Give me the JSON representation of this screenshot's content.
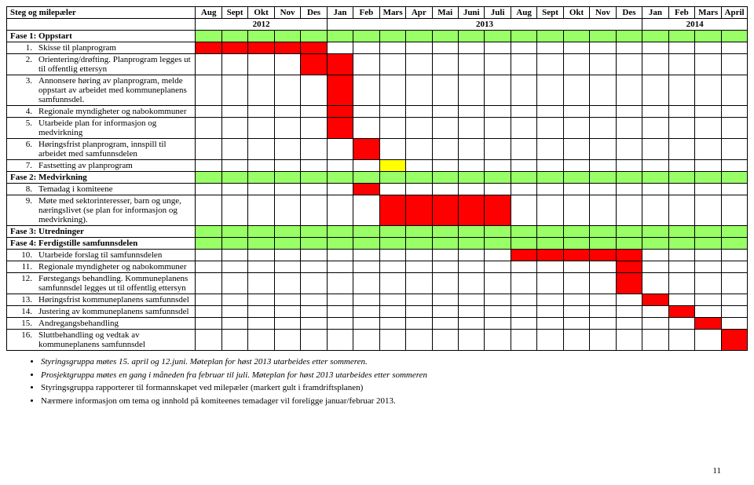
{
  "colors": {
    "red": "#ff0000",
    "green": "#99ff66",
    "yellow": "#ffff00",
    "white": "#ffffff",
    "border": "#000000"
  },
  "header": {
    "taskCol": "Steg og milepæler",
    "months": [
      "Aug",
      "Sept",
      "Okt",
      "Nov",
      "Des",
      "Jan",
      "Feb",
      "Mars",
      "Apr",
      "Mai",
      "Juni",
      "Juli",
      "Aug",
      "Sept",
      "Okt",
      "Nov",
      "Des",
      "Jan",
      "Feb",
      "Mars",
      "April"
    ],
    "yearSpans": [
      {
        "label": "2012",
        "span": 5
      },
      {
        "label": "2013",
        "span": 12
      },
      {
        "label": "2014",
        "span": 4
      }
    ]
  },
  "rows": [
    {
      "num": "",
      "label": "Fase 1: Oppstart",
      "bold": true,
      "fill": [
        "g",
        "g",
        "g",
        "g",
        "g",
        "g",
        "g",
        "g",
        "g",
        "g",
        "g",
        "g",
        "g",
        "g",
        "g",
        "g",
        "g",
        "g",
        "g",
        "g",
        "g"
      ]
    },
    {
      "num": "1.",
      "label": "Skisse til planprogram",
      "fill": [
        "r",
        "r",
        "r",
        "r",
        "r",
        "",
        "",
        "",
        "",
        "",
        "",
        "",
        "",
        "",
        "",
        "",
        "",
        "",
        "",
        "",
        ""
      ]
    },
    {
      "num": "2.",
      "label": "Orientering/drøfting. Planprogram legges ut til offentlig ettersyn",
      "fill": [
        "",
        "",
        "",
        "",
        "r",
        "r",
        "",
        "",
        "",
        "",
        "",
        "",
        "",
        "",
        "",
        "",
        "",
        "",
        "",
        "",
        ""
      ]
    },
    {
      "num": "3.",
      "label": "Annonsere høring av planprogram, melde oppstart av arbeidet med kommuneplanens samfunnsdel.",
      "fill": [
        "",
        "",
        "",
        "",
        "",
        "r",
        "",
        "",
        "",
        "",
        "",
        "",
        "",
        "",
        "",
        "",
        "",
        "",
        "",
        "",
        ""
      ]
    },
    {
      "num": "4.",
      "label": "Regionale myndigheter og nabokommuner",
      "fill": [
        "",
        "",
        "",
        "",
        "",
        "r",
        "",
        "",
        "",
        "",
        "",
        "",
        "",
        "",
        "",
        "",
        "",
        "",
        "",
        "",
        ""
      ]
    },
    {
      "num": "5.",
      "label": "Utarbeide plan for informasjon og medvirkning",
      "fill": [
        "",
        "",
        "",
        "",
        "",
        "r",
        "",
        "",
        "",
        "",
        "",
        "",
        "",
        "",
        "",
        "",
        "",
        "",
        "",
        "",
        ""
      ]
    },
    {
      "num": "6.",
      "label": "Høringsfrist planprogram, innspill til arbeidet med samfunnsdelen",
      "fill": [
        "",
        "",
        "",
        "",
        "",
        "",
        "r",
        "",
        "",
        "",
        "",
        "",
        "",
        "",
        "",
        "",
        "",
        "",
        "",
        "",
        ""
      ]
    },
    {
      "num": "7.",
      "label": "Fastsetting av planprogram",
      "fill": [
        "",
        "",
        "",
        "",
        "",
        "",
        "",
        "y",
        "",
        "",
        "",
        "",
        "",
        "",
        "",
        "",
        "",
        "",
        "",
        "",
        ""
      ]
    },
    {
      "num": "",
      "label": "Fase 2: Medvirkning",
      "bold": true,
      "fill": [
        "g",
        "g",
        "g",
        "g",
        "g",
        "g",
        "g",
        "g",
        "g",
        "g",
        "g",
        "g",
        "g",
        "g",
        "g",
        "g",
        "g",
        "g",
        "g",
        "g",
        "g"
      ]
    },
    {
      "num": "8.",
      "label": "Temadag i komiteene",
      "fill": [
        "",
        "",
        "",
        "",
        "",
        "",
        "r",
        "",
        "",
        "",
        "",
        "",
        "",
        "",
        "",
        "",
        "",
        "",
        "",
        "",
        ""
      ]
    },
    {
      "num": "9.",
      "label": "Møte med sektorinteresser, barn og unge, næringslivet (se plan for informasjon og medvirkning).",
      "fill": [
        "",
        "",
        "",
        "",
        "",
        "",
        "",
        "r",
        "r",
        "r",
        "r",
        "r",
        "",
        "",
        "",
        "",
        "",
        "",
        "",
        "",
        ""
      ]
    },
    {
      "num": "",
      "label": "Fase 3: Utredninger",
      "bold": true,
      "fill": [
        "g",
        "g",
        "g",
        "g",
        "g",
        "g",
        "g",
        "g",
        "g",
        "g",
        "g",
        "g",
        "g",
        "g",
        "g",
        "g",
        "g",
        "g",
        "g",
        "g",
        "g"
      ]
    },
    {
      "num": "",
      "label": "Fase 4: Ferdigstille samfunnsdelen",
      "bold": true,
      "fill": [
        "g",
        "g",
        "g",
        "g",
        "g",
        "g",
        "g",
        "g",
        "g",
        "g",
        "g",
        "g",
        "g",
        "g",
        "g",
        "g",
        "g",
        "g",
        "g",
        "g",
        "g"
      ]
    },
    {
      "num": "10.",
      "label": "Utarbeide forslag til samfunnsdelen",
      "fill": [
        "",
        "",
        "",
        "",
        "",
        "",
        "",
        "",
        "",
        "",
        "",
        "",
        "r",
        "r",
        "r",
        "r",
        "r",
        "",
        "",
        "",
        ""
      ]
    },
    {
      "num": "11.",
      "label": "Regionale myndigheter og nabokommuner",
      "fill": [
        "",
        "",
        "",
        "",
        "",
        "",
        "",
        "",
        "",
        "",
        "",
        "",
        "",
        "",
        "",
        "",
        "r",
        "",
        "",
        "",
        ""
      ]
    },
    {
      "num": "12.",
      "label": "Førstegangs behandling. Kommuneplanens samfunnsdel legges ut til offentlig ettersyn",
      "fill": [
        "",
        "",
        "",
        "",
        "",
        "",
        "",
        "",
        "",
        "",
        "",
        "",
        "",
        "",
        "",
        "",
        "r",
        "",
        "",
        "",
        ""
      ]
    },
    {
      "num": "13.",
      "label": "Høringsfrist kommuneplanens samfunnsdel",
      "fill": [
        "",
        "",
        "",
        "",
        "",
        "",
        "",
        "",
        "",
        "",
        "",
        "",
        "",
        "",
        "",
        "",
        "",
        "r",
        "",
        "",
        ""
      ]
    },
    {
      "num": "14.",
      "label": "Justering av kommuneplanens samfunnsdel",
      "fill": [
        "",
        "",
        "",
        "",
        "",
        "",
        "",
        "",
        "",
        "",
        "",
        "",
        "",
        "",
        "",
        "",
        "",
        "",
        "r",
        "",
        ""
      ]
    },
    {
      "num": "15.",
      "label": "Andregangsbehandling",
      "fill": [
        "",
        "",
        "",
        "",
        "",
        "",
        "",
        "",
        "",
        "",
        "",
        "",
        "",
        "",
        "",
        "",
        "",
        "",
        "",
        "r",
        ""
      ]
    },
    {
      "num": "16.",
      "label": "Sluttbehandling og vedtak av kommuneplanens samfunnsdel",
      "fill": [
        "",
        "",
        "",
        "",
        "",
        "",
        "",
        "",
        "",
        "",
        "",
        "",
        "",
        "",
        "",
        "",
        "",
        "",
        "",
        "",
        "r"
      ]
    }
  ],
  "bullets": [
    "Styringsgruppa møtes 15. april og 12.juni. Møteplan for høst 2013 utarbeides etter sommeren.",
    "Prosjektgruppa møtes en gang i måneden fra februar til juli. Møteplan for høst 2013 utarbeides etter sommeren",
    "Styringsgruppa rapporterer til formannskapet ved milepæler (markert gult i framdriftsplanen)",
    "Nærmere informasjon om tema og innhold på komiteenes temadager vil foreligge januar/februar 2013."
  ],
  "pageNumber": "11"
}
